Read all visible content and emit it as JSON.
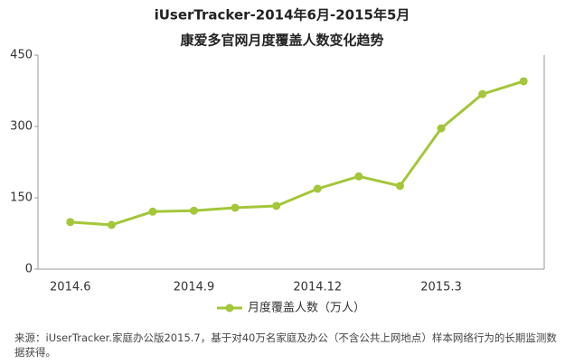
{
  "chart_data": {
    "type": "line",
    "title": "iUserTracker-2014年6月-2015年5月",
    "subtitle": "康爱多官网月度覆盖人数变化趋势",
    "categories": [
      "2014.6",
      null,
      null,
      "2014.9",
      null,
      null,
      "2014.12",
      null,
      null,
      "2015.3",
      null,
      null
    ],
    "series": [
      {
        "name": "月度覆盖人数（万人）",
        "color": "#a4c639",
        "values": [
          99,
          93,
          121,
          123,
          129,
          133,
          169,
          195,
          175,
          296,
          368,
          395
        ]
      }
    ],
    "ylim": [
      0,
      450
    ],
    "yticks": [
      0,
      150,
      300,
      450
    ],
    "grid": false,
    "legend": "bottom",
    "source": "来源：iUserTracker.家庭办公版2015.7，基于对40万名家庭及办公（不含公共上网地点）样本网络行为的长期监测数据获得。"
  }
}
